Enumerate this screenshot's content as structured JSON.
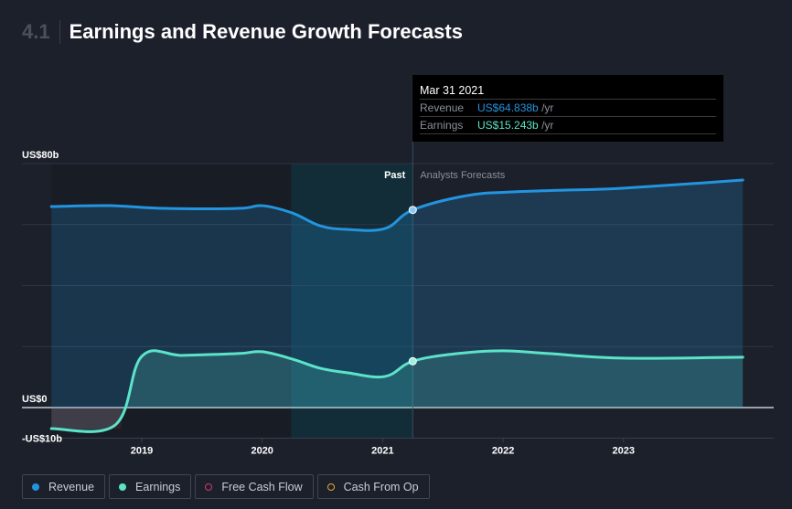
{
  "header": {
    "section": "4.1",
    "title": "Earnings and Revenue Growth Forecasts"
  },
  "tooltip": {
    "date": "Mar 31 2021",
    "rows": [
      {
        "label": "Revenue",
        "value": "US$64.838b",
        "unit": " /yr"
      },
      {
        "label": "Earnings",
        "value": "US$15.243b",
        "unit": " /yr"
      }
    ]
  },
  "colors": {
    "revenue": "#2394df",
    "earnings": "#5ce3c8",
    "fcf": "#d9366f",
    "cfo": "#e9a53b",
    "bg": "#1b202b"
  },
  "chart_data": {
    "type": "line",
    "title": "Earnings and Revenue Growth Forecasts",
    "ylim": [
      -10,
      80
    ],
    "xlim": [
      2018.25,
      2023.99
    ],
    "y_tick_labels": [
      {
        "value": 80,
        "label": "US$80b"
      },
      {
        "value": 0,
        "label": "US$0"
      },
      {
        "value": -10,
        "label": "-US$10b"
      }
    ],
    "y_gridlines": [
      80,
      60,
      40,
      20,
      0
    ],
    "x_ticks": [
      2019,
      2020,
      2021,
      2022,
      2023
    ],
    "x_tick_labels": [
      "2019",
      "2020",
      "2021",
      "2022",
      "2023"
    ],
    "past_label": "Past",
    "forecast_label": "Analysts Forecasts",
    "past_highlight_start": 2020.24,
    "divider": 2021.25,
    "series": [
      {
        "name": "Revenue",
        "points": [
          [
            2018.25,
            65.9
          ],
          [
            2018.74,
            66.2
          ],
          [
            2019.19,
            65.3
          ],
          [
            2019.8,
            65.3
          ],
          [
            2020.0,
            66.2
          ],
          [
            2020.25,
            63.8
          ],
          [
            2020.48,
            59.6
          ],
          [
            2020.71,
            58.4
          ],
          [
            2021.02,
            58.7
          ],
          [
            2021.25,
            64.8
          ],
          [
            2021.7,
            69.5
          ],
          [
            2022.08,
            70.7
          ],
          [
            2022.53,
            71.3
          ],
          [
            2022.99,
            71.9
          ],
          [
            2023.99,
            74.6
          ]
        ]
      },
      {
        "name": "Earnings",
        "points": [
          [
            2018.25,
            -6.9
          ],
          [
            2018.78,
            -5.7
          ],
          [
            2019.0,
            16.8
          ],
          [
            2019.34,
            17.1
          ],
          [
            2019.8,
            17.7
          ],
          [
            2020.0,
            18.3
          ],
          [
            2020.25,
            15.9
          ],
          [
            2020.48,
            12.9
          ],
          [
            2020.71,
            11.4
          ],
          [
            2021.02,
            10.2
          ],
          [
            2021.25,
            15.2
          ],
          [
            2021.62,
            17.7
          ],
          [
            2022.0,
            18.6
          ],
          [
            2022.38,
            17.7
          ],
          [
            2022.99,
            16.2
          ],
          [
            2023.99,
            16.5
          ]
        ]
      }
    ],
    "legend": [
      "Revenue",
      "Earnings",
      "Free Cash Flow",
      "Cash From Op"
    ],
    "legend_position": "bottom-left"
  }
}
